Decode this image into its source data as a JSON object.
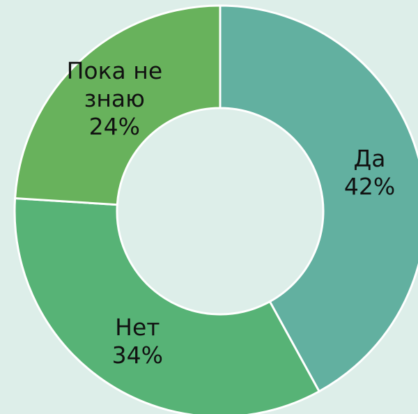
{
  "chart_data": {
    "type": "donut",
    "categories": [
      "Да",
      "Нет",
      "Пока не знаю"
    ],
    "values": [
      42,
      34,
      24
    ],
    "value_labels": [
      "42%",
      "34%",
      "24%"
    ],
    "colors": [
      "#62b0a0",
      "#57b376",
      "#68b25c"
    ]
  }
}
